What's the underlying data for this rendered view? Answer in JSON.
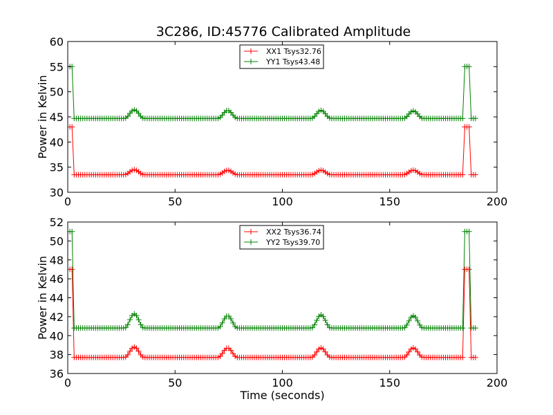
{
  "title": "3C286, ID:45776 Calibrated Amplitude",
  "colors": {
    "red": "#ff0000",
    "green": "#008000"
  },
  "chart_data": [
    {
      "type": "line",
      "xlabel": "",
      "ylabel": "Power in Kelvin",
      "xlim": [
        0,
        200
      ],
      "ylim": [
        30,
        60
      ],
      "xticks": [
        0,
        50,
        100,
        150,
        200
      ],
      "yticks": [
        30,
        35,
        40,
        45,
        50,
        55,
        60
      ],
      "legend": "upper-center",
      "grid": false,
      "series": [
        {
          "name": "XX1 Tsys32.76",
          "color": "#ff0000",
          "marker": "+",
          "baseline": 33.5,
          "start_level": 43.0,
          "end_level": 43.0,
          "bumps": [
            [
              31,
              34.5
            ],
            [
              74.5,
              34.4
            ],
            [
              118,
              34.4
            ],
            [
              161,
              34.4
            ]
          ]
        },
        {
          "name": "YY1 Tsys43.48",
          "color": "#008000",
          "marker": "+",
          "baseline": 44.7,
          "start_level": 55.0,
          "end_level": 55.0,
          "bumps": [
            [
              31,
              46.4
            ],
            [
              74.5,
              46.3
            ],
            [
              118,
              46.3
            ],
            [
              161,
              46.2
            ]
          ]
        }
      ]
    },
    {
      "type": "line",
      "xlabel": "Time (seconds)",
      "ylabel": "Power in Kelvin",
      "xlim": [
        0,
        200
      ],
      "ylim": [
        36,
        52
      ],
      "xticks": [
        0,
        50,
        100,
        150,
        200
      ],
      "yticks": [
        36,
        38,
        40,
        42,
        44,
        46,
        48,
        50,
        52
      ],
      "legend": "upper-center",
      "grid": false,
      "series": [
        {
          "name": "XX2 Tsys36.74",
          "color": "#ff0000",
          "marker": "+",
          "baseline": 37.7,
          "start_level": 47.0,
          "end_level": 47.0,
          "bumps": [
            [
              31,
              38.8
            ],
            [
              74.5,
              38.7
            ],
            [
              118,
              38.7
            ],
            [
              161,
              38.7
            ]
          ]
        },
        {
          "name": "YY2 Tsys39.70",
          "color": "#008000",
          "marker": "+",
          "baseline": 40.8,
          "start_level": 51.0,
          "end_level": 51.0,
          "bumps": [
            [
              31,
              42.3
            ],
            [
              74.5,
              42.1
            ],
            [
              118,
              42.2
            ],
            [
              161,
              42.1
            ]
          ]
        }
      ]
    }
  ]
}
